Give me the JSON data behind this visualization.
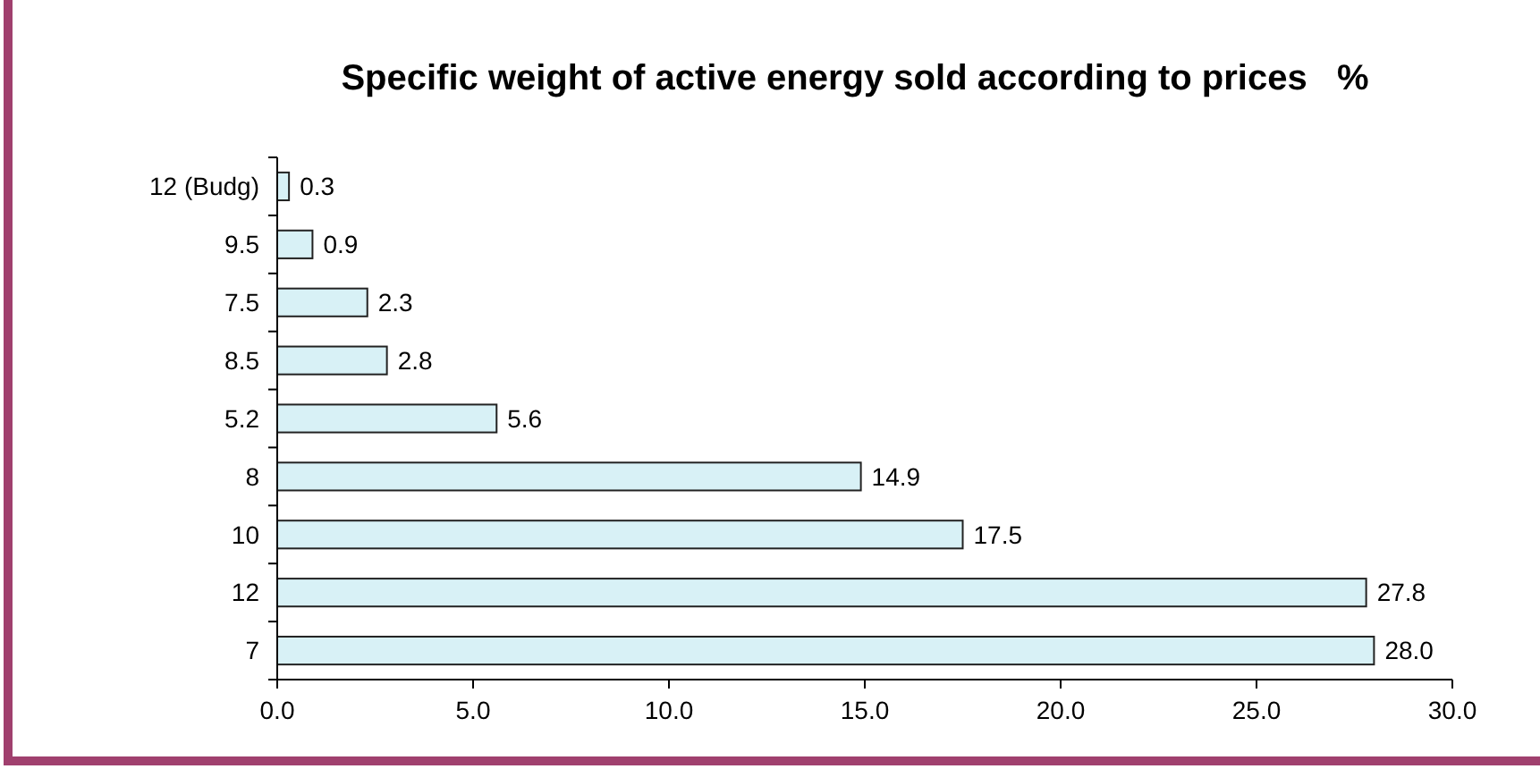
{
  "chart_data": {
    "type": "bar",
    "orientation": "horizontal",
    "title": "Specific weight of active energy sold according to prices   %",
    "categories": [
      "12 (Budg)",
      "9.5",
      "7.5",
      "8.5",
      "5.2",
      "8",
      "10",
      "12",
      "7"
    ],
    "values": [
      0.3,
      0.9,
      2.3,
      2.8,
      5.6,
      14.9,
      17.5,
      27.8,
      28.0
    ],
    "value_labels": [
      "0.3",
      "0.9",
      "2.3",
      "2.8",
      "5.6",
      "14.9",
      "17.5",
      "27.8",
      "28.0"
    ],
    "color": "#d8f1f6",
    "xlim": [
      0,
      30
    ],
    "xticks": [
      {
        "value": 0,
        "label": "0.0"
      },
      {
        "value": 5,
        "label": "5.0"
      },
      {
        "value": 10,
        "label": "10.0"
      },
      {
        "value": 15,
        "label": "15.0"
      },
      {
        "value": 20,
        "label": "20.0"
      },
      {
        "value": 25,
        "label": "25.0"
      },
      {
        "value": 30,
        "label": "30.0"
      }
    ],
    "grid": false
  }
}
